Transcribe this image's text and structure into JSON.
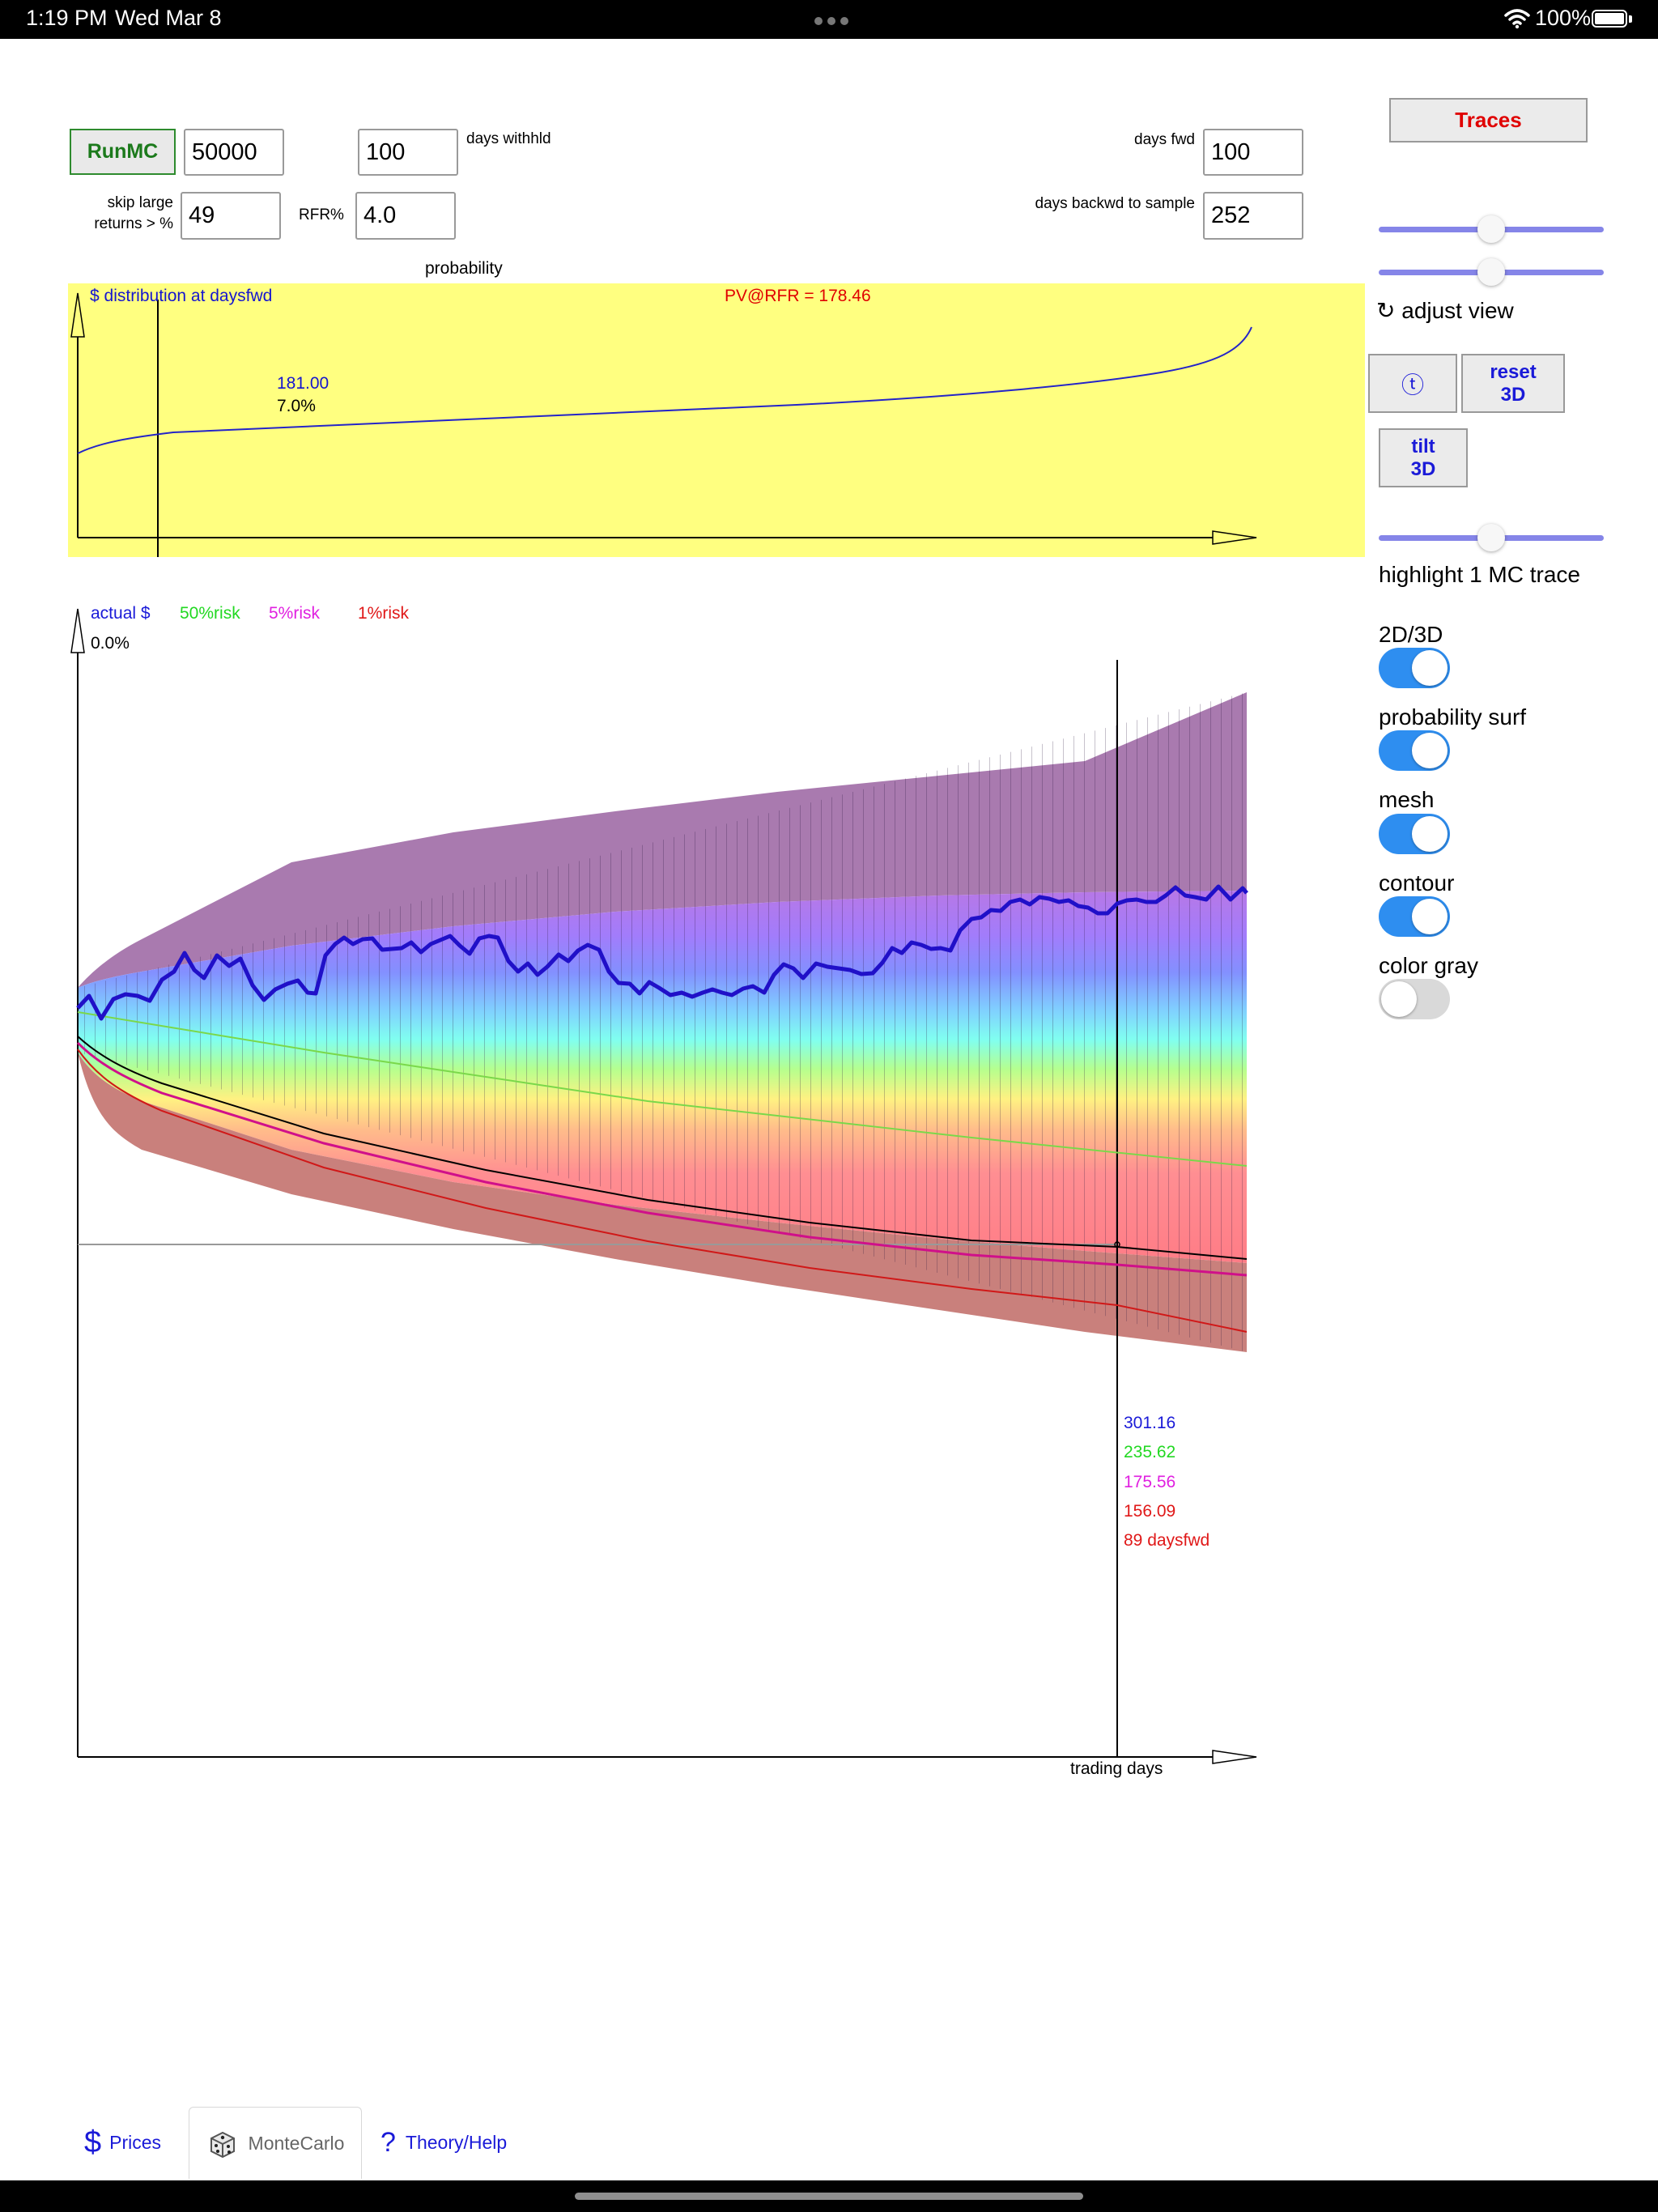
{
  "status_bar": {
    "time": "1:19 PM",
    "date": "Wed Mar 8",
    "battery": "100%"
  },
  "controls": {
    "run_button": "RunMC",
    "runs_value": "50000",
    "days_withheld_value": "100",
    "days_withheld_label": "days withhld",
    "days_fwd_label": "days fwd",
    "days_fwd_value": "100",
    "skip_label_line1": "skip large",
    "skip_label_line2": "returns > %",
    "skip_value": "49",
    "rfr_label": "RFR%",
    "rfr_value": "4.0",
    "days_back_label": "days backwd to sample",
    "days_back_value": "252"
  },
  "side_panel": {
    "traces_button": "Traces",
    "slider1_value": 0.5,
    "slider2_value": 0.5,
    "adjust_view_label": "↻ adjust view",
    "t_button": "ⓣ",
    "reset_line1": "reset",
    "reset_line2": "3D",
    "tilt_line1": "tilt",
    "tilt_line2": "3D",
    "slider3_value": 0.5,
    "highlight_label": "highlight 1 MC trace",
    "toggles": [
      {
        "label": "2D/3D",
        "on": true
      },
      {
        "label": "probability surf",
        "on": true
      },
      {
        "label": "mesh",
        "on": true
      },
      {
        "label": "contour",
        "on": true
      },
      {
        "label": "color gray",
        "on": false
      }
    ]
  },
  "distribution_chart": {
    "probability_label": "probability",
    "title": "$ distribution at daysfwd",
    "pv_label": "PV@RFR = 178.46",
    "marker_value": "181.00",
    "marker_percent": "7.0%"
  },
  "main_chart": {
    "legend": {
      "actual": "actual $",
      "risk50": "50%risk",
      "risk5": "5%risk",
      "risk1": "1%risk",
      "origin_percent": "0.0%"
    },
    "readout": {
      "actual": "301.16",
      "risk50": "235.62",
      "risk5": "175.56",
      "risk1": "156.09",
      "days": "89 daysfwd"
    },
    "x_axis_label": "trading days",
    "colors": {
      "actual": "#1a1ad8",
      "risk50": "#22d822",
      "risk5": "#e020e0",
      "risk1": "#e01818"
    }
  },
  "tabs": {
    "prices": "Prices",
    "montecarlo": "MonteCarlo",
    "theory": "Theory/Help",
    "dollar_icon": "$",
    "question_icon": "?"
  }
}
